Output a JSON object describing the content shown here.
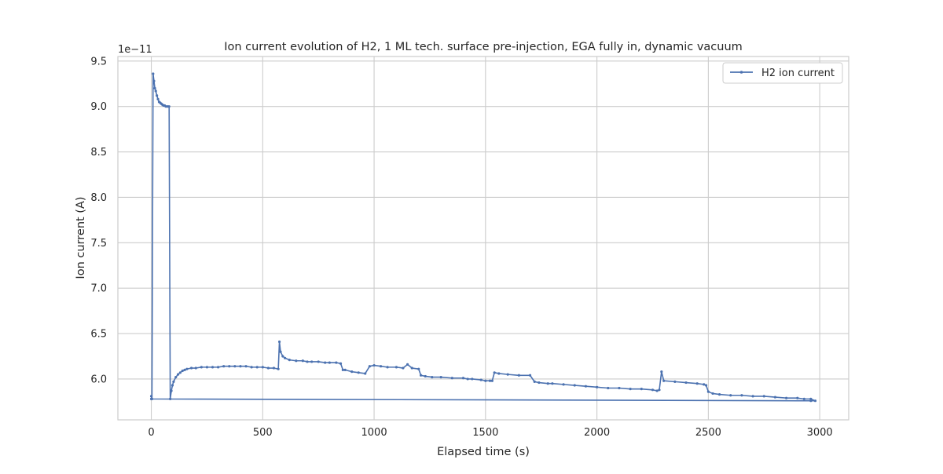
{
  "chart_data": {
    "type": "line",
    "title": "Ion current evolution of H2, 1 ML tech. surface pre-injection, EGA fully in, dynamic vacuum",
    "xlabel": "Elapsed time (s)",
    "ylabel": "Ion current (A)",
    "offset_label": "1e−11",
    "xlim": [
      -150,
      3130
    ],
    "ylim": [
      5.55,
      9.55
    ],
    "xticks": [
      0,
      500,
      1000,
      1500,
      2000,
      2500,
      3000
    ],
    "xtick_labels": [
      "0",
      "500",
      "1000",
      "1500",
      "2000",
      "2500",
      "3000"
    ],
    "yticks": [
      6.0,
      6.5,
      7.0,
      7.5,
      8.0,
      8.5,
      9.0,
      9.5
    ],
    "ytick_labels": [
      "6.0",
      "6.5",
      "7.0",
      "7.5",
      "8.0",
      "8.5",
      "9.0",
      "9.5"
    ],
    "grid": true,
    "legend_position": "top-right",
    "series": [
      {
        "name": "H2 ion current",
        "color": "#4c72b0",
        "marker": "circle",
        "x": [
          0,
          3,
          8,
          12,
          16,
          20,
          25,
          30,
          35,
          40,
          45,
          50,
          55,
          60,
          65,
          70,
          75,
          80,
          85,
          90,
          95,
          100,
          110,
          120,
          130,
          140,
          150,
          160,
          180,
          200,
          225,
          250,
          275,
          300,
          325,
          350,
          375,
          400,
          425,
          450,
          475,
          500,
          525,
          550,
          570,
          575,
          580,
          590,
          600,
          620,
          650,
          680,
          700,
          720,
          750,
          780,
          800,
          830,
          850,
          860,
          870,
          900,
          930,
          960,
          980,
          1000,
          1030,
          1060,
          1100,
          1130,
          1150,
          1170,
          1200,
          1210,
          1230,
          1260,
          1300,
          1350,
          1400,
          1420,
          1440,
          1480,
          1500,
          1520,
          1530,
          1540,
          1560,
          1600,
          1650,
          1700,
          1720,
          1740,
          1780,
          1800,
          1850,
          1900,
          1950,
          2000,
          2050,
          2100,
          2150,
          2200,
          2250,
          2270,
          2280,
          2290,
          2300,
          2350,
          2400,
          2450,
          2480,
          2490,
          2500,
          2520,
          2550,
          2600,
          2650,
          2700,
          2750,
          2800,
          2850,
          2900,
          2930,
          2960,
          2980,
          2960,
          0
        ],
        "values": [
          5.81,
          5.78,
          9.36,
          9.28,
          9.2,
          9.17,
          9.12,
          9.08,
          9.05,
          9.04,
          9.03,
          9.02,
          9.01,
          9.01,
          9.0,
          9.0,
          9.0,
          9.0,
          5.78,
          5.87,
          5.93,
          5.97,
          6.02,
          6.05,
          6.07,
          6.09,
          6.1,
          6.11,
          6.12,
          6.12,
          6.13,
          6.13,
          6.13,
          6.13,
          6.14,
          6.14,
          6.14,
          6.14,
          6.14,
          6.13,
          6.13,
          6.13,
          6.12,
          6.12,
          6.11,
          6.41,
          6.3,
          6.25,
          6.23,
          6.21,
          6.2,
          6.2,
          6.19,
          6.19,
          6.19,
          6.18,
          6.18,
          6.18,
          6.17,
          6.1,
          6.1,
          6.08,
          6.07,
          6.06,
          6.14,
          6.15,
          6.14,
          6.13,
          6.13,
          6.12,
          6.16,
          6.12,
          6.11,
          6.04,
          6.03,
          6.02,
          6.02,
          6.01,
          6.01,
          6.0,
          6.0,
          5.99,
          5.98,
          5.98,
          5.98,
          6.07,
          6.06,
          6.05,
          6.04,
          6.04,
          5.97,
          5.96,
          5.95,
          5.95,
          5.94,
          5.93,
          5.92,
          5.91,
          5.9,
          5.9,
          5.89,
          5.89,
          5.88,
          5.87,
          5.88,
          6.08,
          5.98,
          5.97,
          5.96,
          5.95,
          5.94,
          5.93,
          5.86,
          5.84,
          5.83,
          5.82,
          5.82,
          5.81,
          5.81,
          5.8,
          5.79,
          5.79,
          5.78,
          5.78,
          5.76,
          5.76,
          5.78
        ]
      }
    ]
  }
}
